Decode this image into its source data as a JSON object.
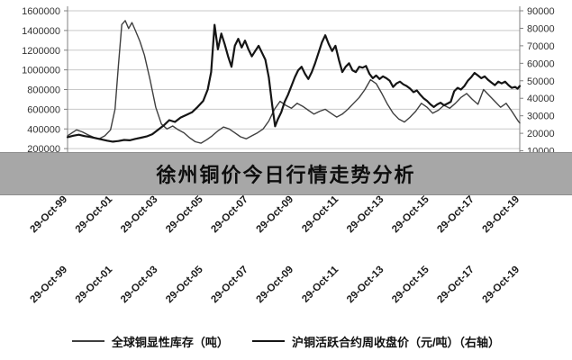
{
  "banner": {
    "title": "徐州铜价今日行情走势分析"
  },
  "chart_data": {
    "type": "line",
    "title": "",
    "xlabel": "",
    "ylabel": "",
    "grid": true,
    "legend_position": "bottom",
    "left_axis": {
      "min": 0,
      "max": 1600000,
      "step": 200000
    },
    "right_axis": {
      "min": 0,
      "max": 90000,
      "step": 10000
    },
    "x_range": [
      1999.8,
      2019.8
    ],
    "x_labels": [
      "29-Oct-99",
      "29-Oct-01",
      "29-Oct-03",
      "29-Oct-05",
      "29-Oct-07",
      "29-Oct-09",
      "29-Oct-11",
      "29-Oct-13",
      "29-Oct-15",
      "29-Oct-17",
      "29-Oct-19"
    ],
    "x_label_rows": 2,
    "series": [
      {
        "name": "全球铜显性库存（吨）",
        "axis": "left",
        "color": "#3f3f3f",
        "width": 1.4,
        "points": [
          [
            1999.8,
            330000
          ],
          [
            2000.0,
            360000
          ],
          [
            2000.2,
            390000
          ],
          [
            2000.45,
            370000
          ],
          [
            2000.7,
            340000
          ],
          [
            2000.95,
            315000
          ],
          [
            2001.2,
            300000
          ],
          [
            2001.45,
            330000
          ],
          [
            2001.7,
            390000
          ],
          [
            2001.9,
            600000
          ],
          [
            2002.05,
            1050000
          ],
          [
            2002.2,
            1460000
          ],
          [
            2002.35,
            1500000
          ],
          [
            2002.5,
            1420000
          ],
          [
            2002.65,
            1480000
          ],
          [
            2002.8,
            1400000
          ],
          [
            2003.0,
            1290000
          ],
          [
            2003.2,
            1150000
          ],
          [
            2003.45,
            900000
          ],
          [
            2003.7,
            620000
          ],
          [
            2003.95,
            450000
          ],
          [
            2004.2,
            400000
          ],
          [
            2004.45,
            430000
          ],
          [
            2004.7,
            390000
          ],
          [
            2004.95,
            360000
          ],
          [
            2005.2,
            310000
          ],
          [
            2005.45,
            270000
          ],
          [
            2005.7,
            255000
          ],
          [
            2005.95,
            290000
          ],
          [
            2006.2,
            330000
          ],
          [
            2006.45,
            380000
          ],
          [
            2006.7,
            420000
          ],
          [
            2006.95,
            400000
          ],
          [
            2007.2,
            360000
          ],
          [
            2007.45,
            320000
          ],
          [
            2007.7,
            300000
          ],
          [
            2007.95,
            330000
          ],
          [
            2008.2,
            360000
          ],
          [
            2008.45,
            400000
          ],
          [
            2008.7,
            480000
          ],
          [
            2008.95,
            600000
          ],
          [
            2009.2,
            680000
          ],
          [
            2009.45,
            640000
          ],
          [
            2009.7,
            610000
          ],
          [
            2009.95,
            660000
          ],
          [
            2010.2,
            630000
          ],
          [
            2010.45,
            590000
          ],
          [
            2010.7,
            550000
          ],
          [
            2010.95,
            580000
          ],
          [
            2011.2,
            600000
          ],
          [
            2011.45,
            560000
          ],
          [
            2011.7,
            520000
          ],
          [
            2011.95,
            550000
          ],
          [
            2012.2,
            600000
          ],
          [
            2012.45,
            660000
          ],
          [
            2012.7,
            720000
          ],
          [
            2012.95,
            800000
          ],
          [
            2013.2,
            900000
          ],
          [
            2013.45,
            860000
          ],
          [
            2013.7,
            760000
          ],
          [
            2013.95,
            650000
          ],
          [
            2014.2,
            560000
          ],
          [
            2014.45,
            500000
          ],
          [
            2014.7,
            470000
          ],
          [
            2014.95,
            520000
          ],
          [
            2015.2,
            580000
          ],
          [
            2015.45,
            660000
          ],
          [
            2015.7,
            620000
          ],
          [
            2015.95,
            560000
          ],
          [
            2016.2,
            590000
          ],
          [
            2016.45,
            640000
          ],
          [
            2016.7,
            610000
          ],
          [
            2016.95,
            660000
          ],
          [
            2017.2,
            720000
          ],
          [
            2017.45,
            760000
          ],
          [
            2017.7,
            700000
          ],
          [
            2017.95,
            650000
          ],
          [
            2018.2,
            800000
          ],
          [
            2018.45,
            740000
          ],
          [
            2018.7,
            680000
          ],
          [
            2018.95,
            620000
          ],
          [
            2019.2,
            660000
          ],
          [
            2019.45,
            580000
          ],
          [
            2019.7,
            490000
          ],
          [
            2019.8,
            460000
          ]
        ]
      },
      {
        "name": "沪铜活跃合约周收盘价（元/吨）（右轴）",
        "axis": "right",
        "color": "#151515",
        "width": 2.2,
        "points": [
          [
            1999.8,
            17800
          ],
          [
            2000.05,
            18600
          ],
          [
            2000.3,
            19200
          ],
          [
            2000.55,
            18400
          ],
          [
            2000.8,
            17900
          ],
          [
            2001.05,
            17200
          ],
          [
            2001.3,
            16500
          ],
          [
            2001.55,
            15800
          ],
          [
            2001.8,
            15200
          ],
          [
            2002.05,
            15600
          ],
          [
            2002.3,
            16200
          ],
          [
            2002.55,
            16000
          ],
          [
            2002.8,
            16800
          ],
          [
            2003.05,
            17500
          ],
          [
            2003.3,
            18200
          ],
          [
            2003.55,
            19500
          ],
          [
            2003.8,
            22000
          ],
          [
            2004.05,
            24500
          ],
          [
            2004.3,
            27500
          ],
          [
            2004.55,
            26500
          ],
          [
            2004.8,
            29000
          ],
          [
            2005.05,
            30500
          ],
          [
            2005.3,
            32000
          ],
          [
            2005.55,
            35000
          ],
          [
            2005.8,
            38500
          ],
          [
            2006.0,
            45000
          ],
          [
            2006.15,
            55000
          ],
          [
            2006.3,
            82000
          ],
          [
            2006.45,
            68000
          ],
          [
            2006.6,
            77000
          ],
          [
            2006.75,
            71000
          ],
          [
            2006.9,
            64000
          ],
          [
            2007.05,
            58000
          ],
          [
            2007.2,
            70000
          ],
          [
            2007.35,
            74000
          ],
          [
            2007.5,
            69000
          ],
          [
            2007.65,
            73000
          ],
          [
            2007.8,
            68000
          ],
          [
            2007.95,
            64000
          ],
          [
            2008.1,
            67000
          ],
          [
            2008.25,
            70000
          ],
          [
            2008.4,
            66000
          ],
          [
            2008.55,
            62000
          ],
          [
            2008.7,
            52000
          ],
          [
            2008.85,
            36000
          ],
          [
            2008.98,
            24000
          ],
          [
            2009.1,
            28000
          ],
          [
            2009.25,
            32000
          ],
          [
            2009.4,
            38000
          ],
          [
            2009.55,
            42000
          ],
          [
            2009.7,
            47000
          ],
          [
            2009.85,
            52000
          ],
          [
            2010.0,
            56000
          ],
          [
            2010.15,
            58000
          ],
          [
            2010.3,
            54000
          ],
          [
            2010.45,
            51000
          ],
          [
            2010.6,
            55000
          ],
          [
            2010.75,
            60000
          ],
          [
            2010.9,
            66000
          ],
          [
            2011.05,
            72000
          ],
          [
            2011.2,
            76000
          ],
          [
            2011.35,
            71000
          ],
          [
            2011.5,
            67000
          ],
          [
            2011.65,
            70000
          ],
          [
            2011.8,
            62000
          ],
          [
            2011.95,
            55000
          ],
          [
            2012.1,
            58000
          ],
          [
            2012.25,
            60000
          ],
          [
            2012.4,
            56000
          ],
          [
            2012.55,
            55000
          ],
          [
            2012.7,
            58000
          ],
          [
            2012.85,
            57500
          ],
          [
            2013.0,
            58500
          ],
          [
            2013.15,
            54000
          ],
          [
            2013.3,
            51500
          ],
          [
            2013.45,
            53000
          ],
          [
            2013.6,
            51000
          ],
          [
            2013.75,
            52500
          ],
          [
            2013.9,
            51500
          ],
          [
            2014.05,
            50000
          ],
          [
            2014.2,
            46500
          ],
          [
            2014.35,
            48500
          ],
          [
            2014.5,
            49500
          ],
          [
            2014.65,
            48000
          ],
          [
            2014.8,
            47000
          ],
          [
            2014.95,
            45500
          ],
          [
            2015.1,
            43500
          ],
          [
            2015.25,
            44500
          ],
          [
            2015.4,
            42000
          ],
          [
            2015.55,
            40000
          ],
          [
            2015.7,
            38500
          ],
          [
            2015.85,
            36500
          ],
          [
            2016.0,
            35000
          ],
          [
            2016.15,
            36500
          ],
          [
            2016.3,
            37500
          ],
          [
            2016.45,
            36000
          ],
          [
            2016.6,
            37000
          ],
          [
            2016.75,
            38000
          ],
          [
            2016.9,
            44000
          ],
          [
            2017.05,
            46000
          ],
          [
            2017.2,
            45000
          ],
          [
            2017.35,
            47000
          ],
          [
            2017.5,
            50000
          ],
          [
            2017.65,
            52000
          ],
          [
            2017.8,
            54500
          ],
          [
            2017.95,
            53000
          ],
          [
            2018.1,
            51500
          ],
          [
            2018.25,
            52500
          ],
          [
            2018.4,
            50500
          ],
          [
            2018.55,
            49000
          ],
          [
            2018.7,
            47500
          ],
          [
            2018.85,
            49500
          ],
          [
            2019.0,
            48500
          ],
          [
            2019.15,
            49500
          ],
          [
            2019.3,
            47500
          ],
          [
            2019.45,
            46000
          ],
          [
            2019.6,
            46500
          ],
          [
            2019.7,
            45500
          ],
          [
            2019.8,
            47000
          ]
        ]
      }
    ],
    "legend": [
      "全球铜显性库存（吨）",
      "沪铜活跃合约周收盘价（元/吨）（右轴）"
    ]
  }
}
